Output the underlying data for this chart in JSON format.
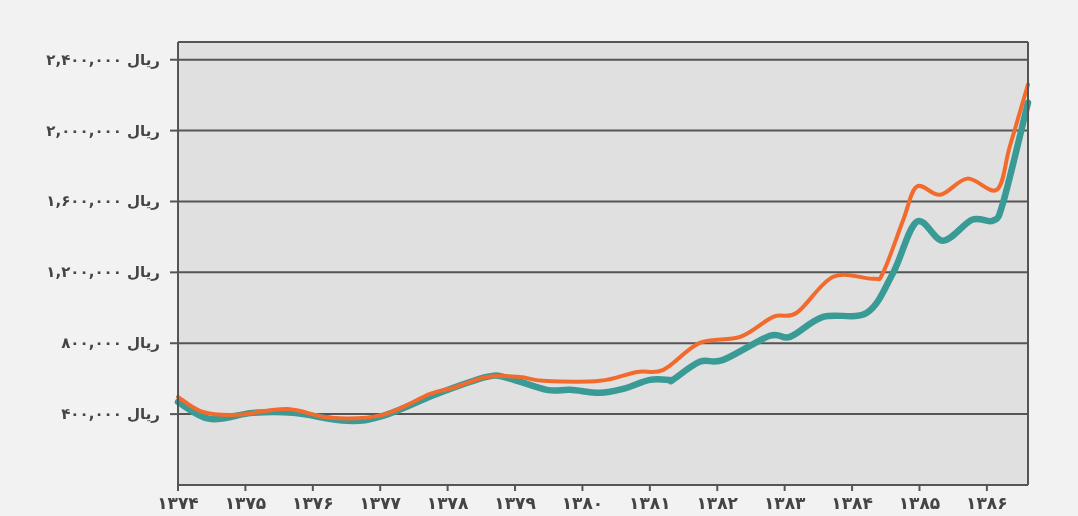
{
  "chart_data": {
    "type": "line",
    "grid": "y",
    "xlim": [
      1374,
      1386.61
    ],
    "ylim": [
      0,
      2500000
    ],
    "xticks": [
      {
        "value": 1374,
        "label": "۱۳۷۴"
      },
      {
        "value": 1375,
        "label": "۱۳۷۵"
      },
      {
        "value": 1376,
        "label": "۱۳۷۶"
      },
      {
        "value": 1377,
        "label": "۱۳۷۷"
      },
      {
        "value": 1378,
        "label": "۱۳۷۸"
      },
      {
        "value": 1379,
        "label": "۱۳۷۹"
      },
      {
        "value": 1380,
        "label": "۱۳۸۰"
      },
      {
        "value": 1381,
        "label": "۱۳۸۱"
      },
      {
        "value": 1382,
        "label": "۱۳۸۲"
      },
      {
        "value": 1383,
        "label": "۱۳۸۳"
      },
      {
        "value": 1384,
        "label": "۱۳۸۴"
      },
      {
        "value": 1385,
        "label": "۱۳۸۵"
      },
      {
        "value": 1386,
        "label": "۱۳۸۶"
      }
    ],
    "yticks": [
      {
        "value": 400000,
        "label": "۴۰۰,۰۰۰ ریال"
      },
      {
        "value": 800000,
        "label": "۸۰۰,۰۰۰ ریال"
      },
      {
        "value": 1200000,
        "label": "۱,۲۰۰,۰۰۰ ریال"
      },
      {
        "value": 1600000,
        "label": "۱,۶۰۰,۰۰۰ ریال"
      },
      {
        "value": 2000000,
        "label": "۲,۰۰۰,۰۰۰ ریال"
      },
      {
        "value": 2400000,
        "label": "۲,۴۰۰,۰۰۰ ریال"
      }
    ],
    "series": [
      {
        "color": "#3a9a95",
        "x": [
          1374.0,
          1374.47,
          1375.11,
          1375.71,
          1376.51,
          1377.04,
          1377.84,
          1378.58,
          1378.88,
          1379.47,
          1379.82,
          1380.26,
          1380.6,
          1381.0,
          1381.3,
          1381.34,
          1381.74,
          1382.09,
          1382.78,
          1383.08,
          1383.57,
          1384.22,
          1384.61,
          1384.96,
          1385.35,
          1385.78,
          1386.09,
          1386.24,
          1386.61
        ],
        "values": [
          469000,
          373000,
          407000,
          407000,
          362000,
          390000,
          514000,
          610000,
          605000,
          537000,
          537000,
          520000,
          542000,
          593000,
          593000,
          593000,
          695000,
          706000,
          842000,
          836000,
          949000,
          972000,
          1198000,
          1486000,
          1379000,
          1497000,
          1492000,
          1593000,
          2158000
        ]
      },
      {
        "color": "#f26b2d",
        "x": [
          1374.0,
          1374.37,
          1374.88,
          1375.62,
          1376.26,
          1377.04,
          1377.74,
          1378.08,
          1378.58,
          1379.07,
          1379.42,
          1380.26,
          1380.81,
          1381.2,
          1381.74,
          1382.34,
          1382.83,
          1383.18,
          1383.72,
          1384.31,
          1384.46,
          1384.76,
          1384.96,
          1385.31,
          1385.71,
          1386.15,
          1386.34,
          1386.61
        ],
        "values": [
          497000,
          412000,
          396000,
          429000,
          379000,
          396000,
          514000,
          548000,
          610000,
          610000,
          588000,
          588000,
          638000,
          650000,
          802000,
          836000,
          949000,
          972000,
          1175000,
          1164000,
          1198000,
          1497000,
          1684000,
          1638000,
          1729000,
          1667000,
          1910000,
          2260000
        ]
      }
    ]
  }
}
